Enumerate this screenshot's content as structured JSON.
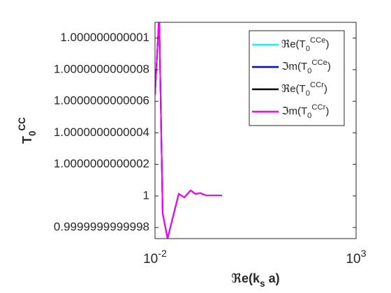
{
  "chart_data": {
    "type": "line",
    "xlabel": "ℜe(k_s a)",
    "ylabel": "T_0^{CC}",
    "xscale": "log",
    "xlim": [
      0.01,
      1000
    ],
    "xticks": [
      {
        "value": 0.01,
        "label": "10^{-2}"
      },
      {
        "value": 1000,
        "label": "10^{3}"
      }
    ],
    "ylim": [
      0.99999999999973,
      1.0000000000011
    ],
    "yticks": [
      0.9999999999998,
      1,
      1.0000000000002,
      1.0000000000004,
      1.0000000000006,
      1.0000000000008,
      1.000000000001
    ],
    "grid": false,
    "legend": "northeast",
    "x": [
      0.01,
      0.0127,
      0.0155,
      0.0205,
      0.0389,
      0.0536,
      0.0768,
      0.1016,
      0.134,
      0.185,
      0.464
    ],
    "series": [
      {
        "name": "ℜe(T_0^{CCe})",
        "color": "#00ffff",
        "values": [
          1.00000000000064,
          1.00000000000115,
          0.99999999999989,
          0.99999999999973,
          1.000000000000013,
          0.999999999999991,
          1.000000000000035,
          1.000000000000013,
          1.000000000000018,
          1.000000000000004,
          1.000000000000004
        ]
      },
      {
        "name": "ℑm(T_0^{CCe})",
        "color": "#0000ff",
        "values": [
          1.00000000000064,
          1.00000000000115,
          0.99999999999989,
          0.99999999999973,
          1.000000000000013,
          0.999999999999991,
          1.000000000000035,
          1.000000000000013,
          1.000000000000018,
          1.000000000000004,
          1.000000000000004
        ]
      },
      {
        "name": "ℜe(T_0^{CCr})",
        "color": "#000000",
        "values": [
          1.00000000000064,
          1.00000000000115,
          0.99999999999989,
          0.99999999999973,
          1.000000000000013,
          0.999999999999991,
          1.000000000000035,
          1.000000000000013,
          1.000000000000018,
          1.000000000000004,
          1.000000000000004
        ]
      },
      {
        "name": "ℑm(T_0^{CCr})",
        "color": "#ff00ff",
        "values": [
          1.00000000000064,
          1.00000000000115,
          0.99999999999989,
          0.99999999999973,
          1.000000000000013,
          0.999999999999991,
          1.000000000000035,
          1.000000000000013,
          1.000000000000018,
          1.000000000000004,
          1.000000000000004
        ]
      }
    ]
  }
}
